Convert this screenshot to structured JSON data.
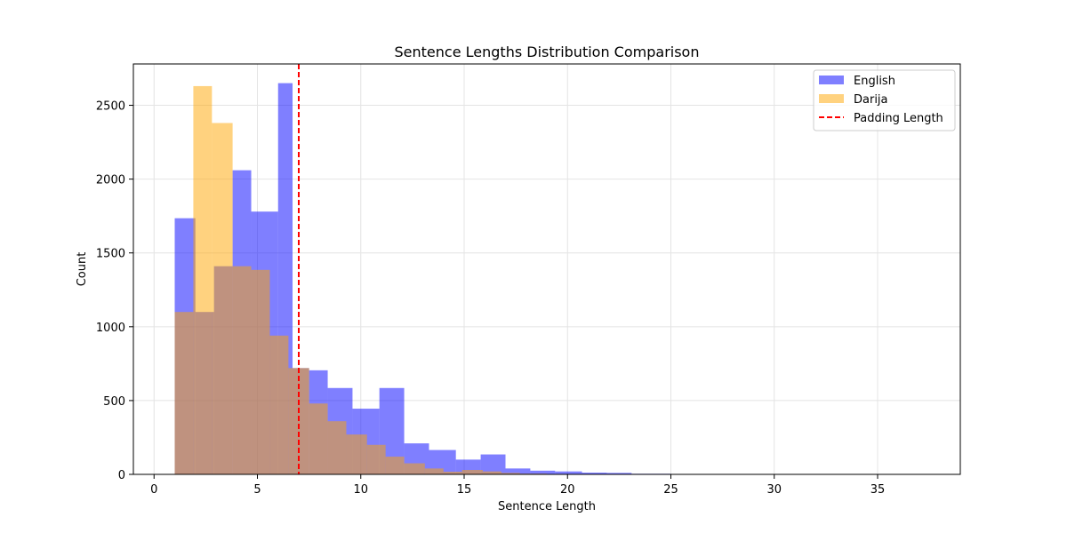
{
  "chart_data": {
    "type": "bar",
    "title": "Sentence Lengths Distribution Comparison",
    "xlabel": "Sentence Length",
    "ylabel": "Count",
    "xlim": [
      -1,
      39
    ],
    "ylim": [
      0,
      2780
    ],
    "xticks": [
      0,
      5,
      10,
      15,
      20,
      25,
      30,
      35
    ],
    "yticks": [
      0,
      500,
      1000,
      1500,
      2000,
      2500
    ],
    "grid": true,
    "legend_position": "top-right",
    "series": [
      {
        "name": "English",
        "color": "#0000ff",
        "opacity": 0.5,
        "bins": [
          {
            "x0": 1.0,
            "x1": 2.0,
            "y": 1735
          },
          {
            "x0": 2.0,
            "x1": 2.9,
            "y": 1100
          },
          {
            "x0": 2.9,
            "x1": 3.8,
            "y": 1410
          },
          {
            "x0": 3.8,
            "x1": 4.7,
            "y": 2060
          },
          {
            "x0": 4.7,
            "x1": 6.0,
            "y": 1780
          },
          {
            "x0": 6.0,
            "x1": 6.7,
            "y": 2650
          },
          {
            "x0": 6.7,
            "x1": 7.5,
            "y": 720
          },
          {
            "x0": 7.5,
            "x1": 8.4,
            "y": 705
          },
          {
            "x0": 8.4,
            "x1": 9.6,
            "y": 585
          },
          {
            "x0": 9.6,
            "x1": 10.9,
            "y": 445
          },
          {
            "x0": 10.9,
            "x1": 12.1,
            "y": 585
          },
          {
            "x0": 12.1,
            "x1": 13.3,
            "y": 210
          },
          {
            "x0": 13.3,
            "x1": 14.6,
            "y": 165
          },
          {
            "x0": 14.6,
            "x1": 15.8,
            "y": 100
          },
          {
            "x0": 15.8,
            "x1": 17.0,
            "y": 135
          },
          {
            "x0": 17.0,
            "x1": 18.2,
            "y": 40
          },
          {
            "x0": 18.2,
            "x1": 19.4,
            "y": 25
          },
          {
            "x0": 19.4,
            "x1": 20.7,
            "y": 20
          },
          {
            "x0": 20.7,
            "x1": 21.9,
            "y": 12
          },
          {
            "x0": 21.9,
            "x1": 23.1,
            "y": 10
          },
          {
            "x0": 23.1,
            "x1": 25.0,
            "y": 4
          },
          {
            "x0": 25.0,
            "x1": 38.0,
            "y": 2
          }
        ]
      },
      {
        "name": "Darija",
        "color": "#ffa500",
        "opacity": 0.5,
        "bins": [
          {
            "x0": 1.0,
            "x1": 1.9,
            "y": 1100
          },
          {
            "x0": 1.9,
            "x1": 2.8,
            "y": 2630
          },
          {
            "x0": 2.8,
            "x1": 3.8,
            "y": 2380
          },
          {
            "x0": 3.8,
            "x1": 4.7,
            "y": 1410
          },
          {
            "x0": 4.7,
            "x1": 5.6,
            "y": 1385
          },
          {
            "x0": 5.6,
            "x1": 6.5,
            "y": 940
          },
          {
            "x0": 6.5,
            "x1": 7.5,
            "y": 720
          },
          {
            "x0": 7.5,
            "x1": 8.4,
            "y": 480
          },
          {
            "x0": 8.4,
            "x1": 9.3,
            "y": 360
          },
          {
            "x0": 9.3,
            "x1": 10.3,
            "y": 270
          },
          {
            "x0": 10.3,
            "x1": 11.2,
            "y": 200
          },
          {
            "x0": 11.2,
            "x1": 12.1,
            "y": 120
          },
          {
            "x0": 12.1,
            "x1": 13.1,
            "y": 75
          },
          {
            "x0": 13.1,
            "x1": 14.0,
            "y": 40
          },
          {
            "x0": 14.0,
            "x1": 14.9,
            "y": 18
          },
          {
            "x0": 14.9,
            "x1": 15.9,
            "y": 30
          },
          {
            "x0": 15.9,
            "x1": 16.8,
            "y": 20
          },
          {
            "x0": 16.8,
            "x1": 17.7,
            "y": 10
          },
          {
            "x0": 17.7,
            "x1": 19.0,
            "y": 5
          },
          {
            "x0": 19.0,
            "x1": 25.0,
            "y": 2
          }
        ]
      }
    ],
    "reference_line": {
      "name": "Padding Length",
      "x": 7,
      "color": "#ff0000",
      "style": "dashed"
    }
  }
}
